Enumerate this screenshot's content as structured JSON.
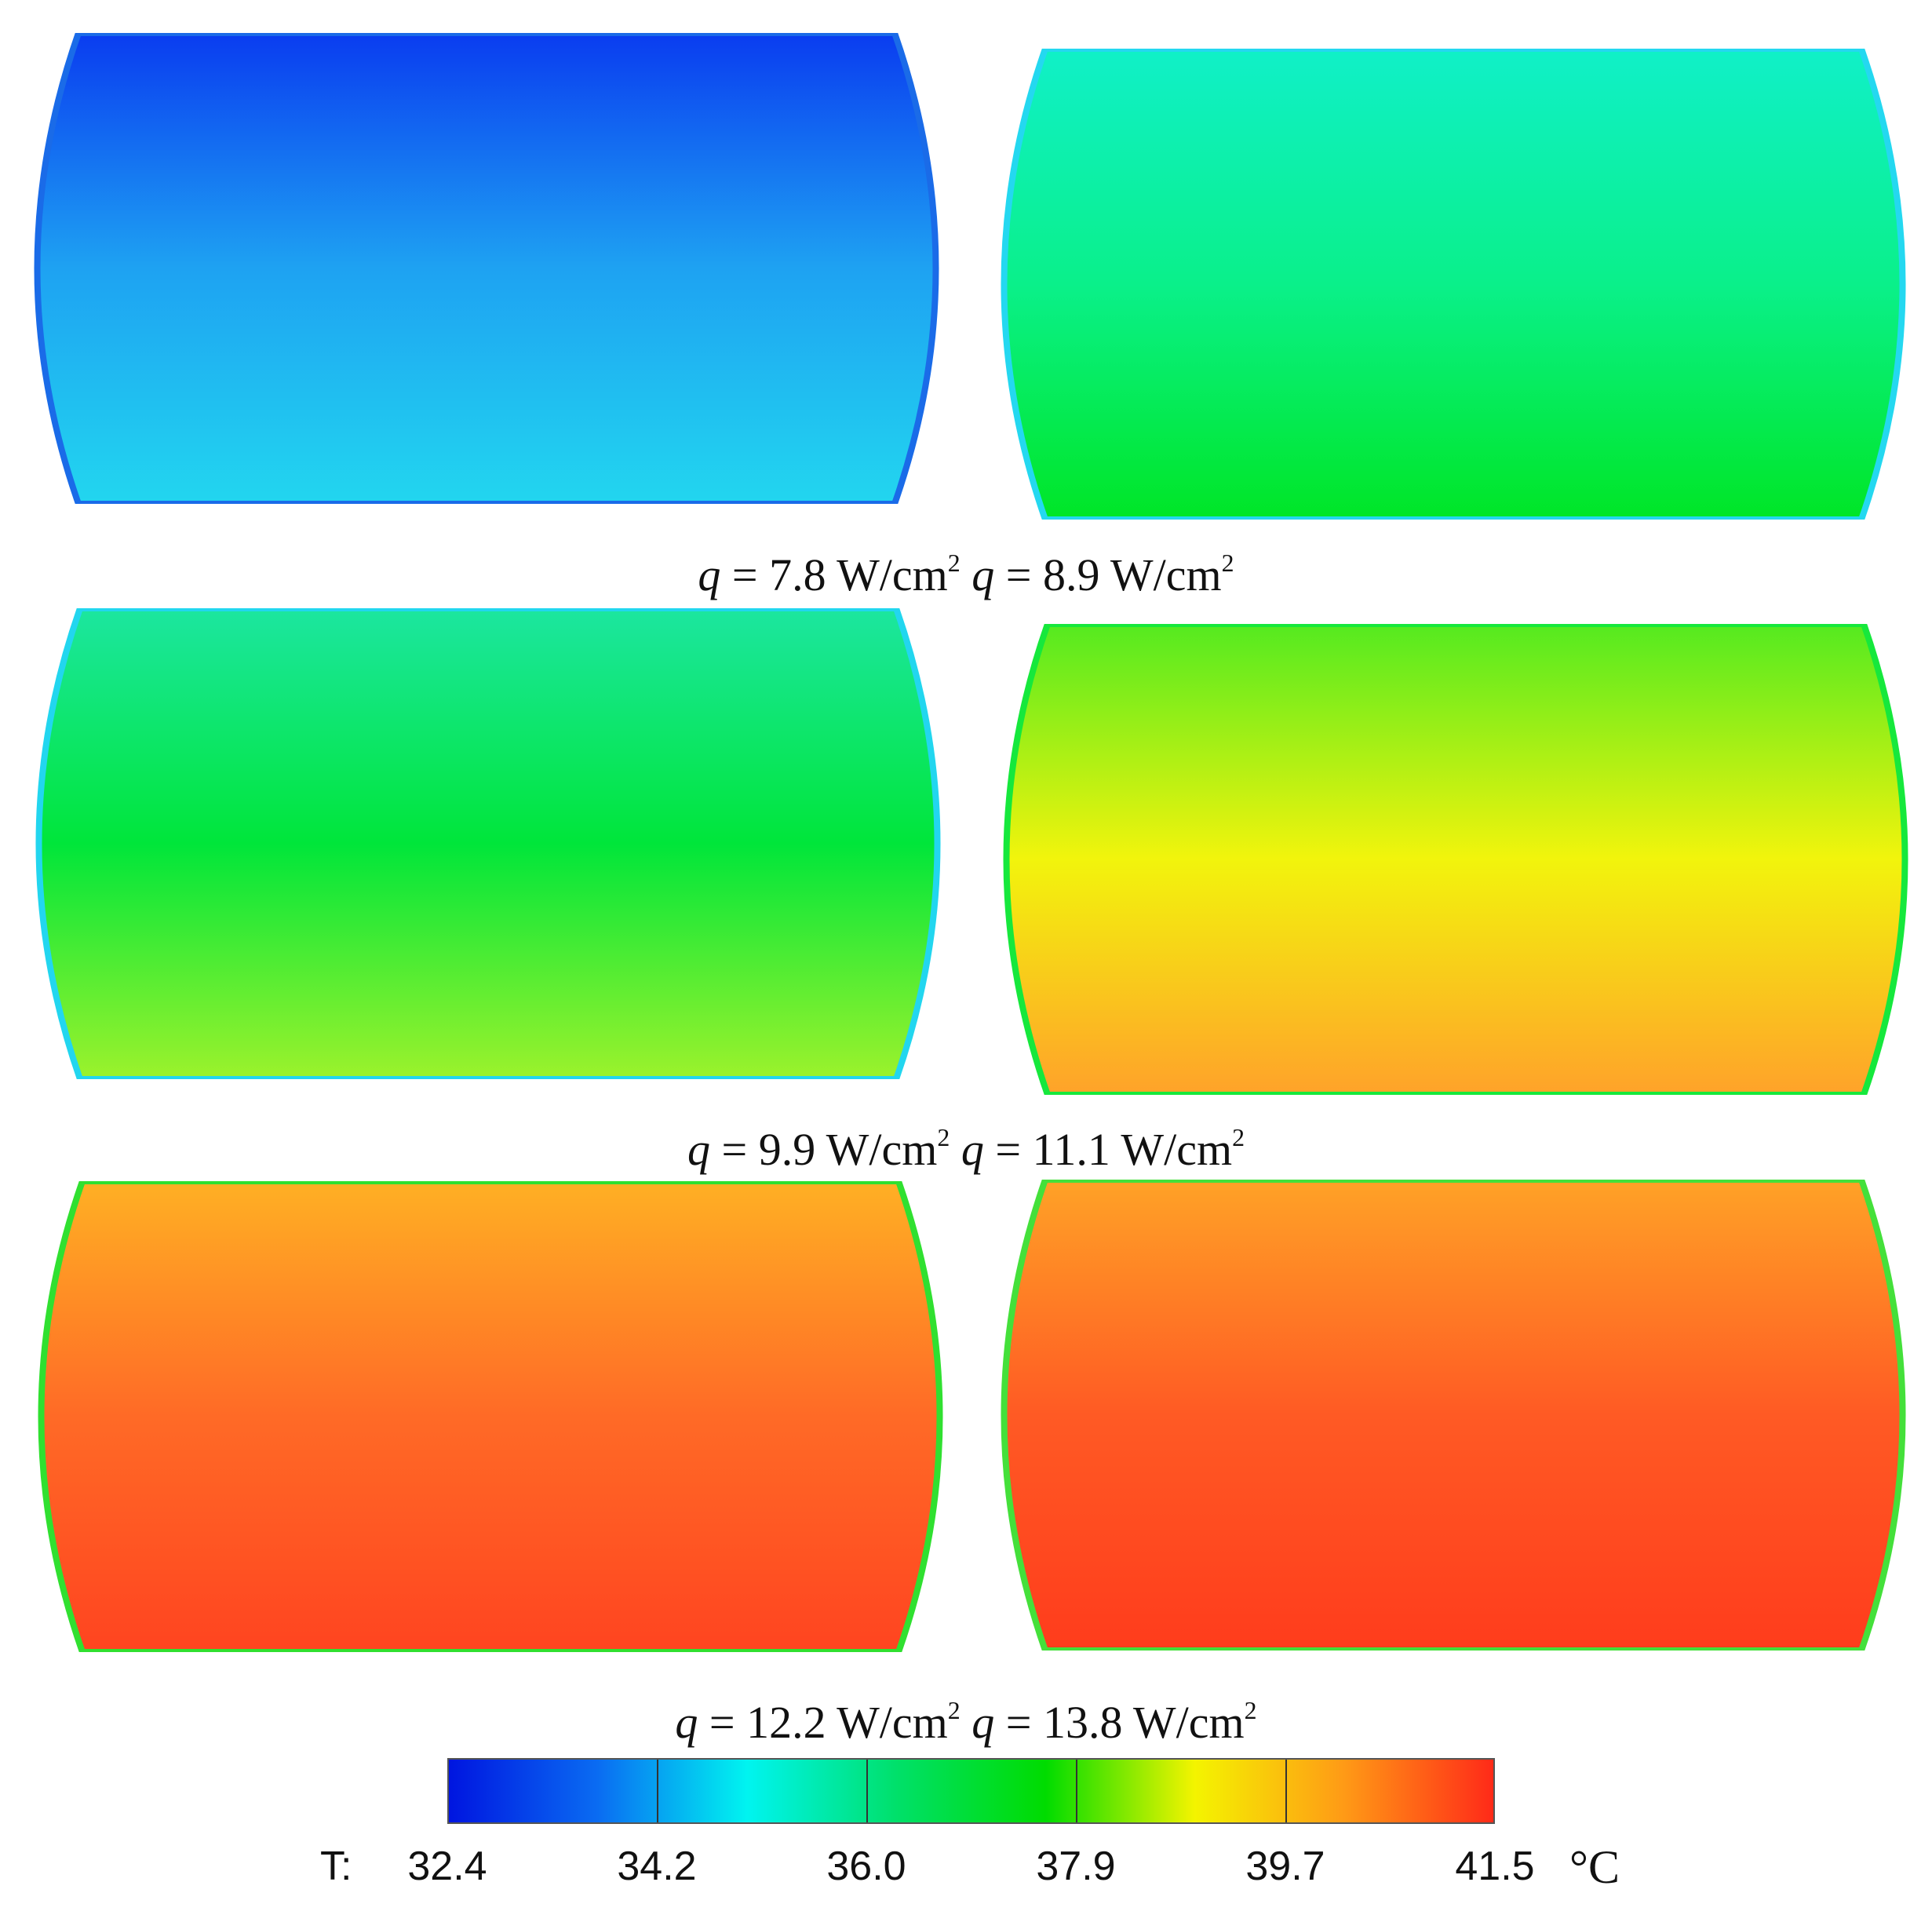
{
  "figure": {
    "panels": [
      {
        "caption": "q = 7.8 W/cm²",
        "q_symbol": "q",
        "q_value": "= 7.8 W/cm",
        "q_exp": "2",
        "colors": {
          "top": "#0a3cf0",
          "mid": "#1ea2f2",
          "bottom": "#22d6ef",
          "edge": "#1a6be8"
        }
      },
      {
        "caption": "q = 8.9 W/cm²",
        "q_symbol": "q",
        "q_value": "= 8.9 W/cm",
        "q_exp": "2",
        "colors": {
          "top": "#10f0c8",
          "mid": "#0af08a",
          "bottom": "#00e626",
          "edge": "#24d8f0"
        }
      },
      {
        "caption": "q = 9.9 W/cm²",
        "q_symbol": "q",
        "q_value": "= 9.9 W/cm",
        "q_exp": "2",
        "colors": {
          "top": "#1ce6a0",
          "mid": "#00e63a",
          "bottom": "#9cf22c",
          "edge": "#22d6ef"
        }
      },
      {
        "caption": "q = 11.1 W/cm²",
        "q_symbol": "q",
        "q_value": "= 11.1 W/cm",
        "q_exp": "2",
        "colors": {
          "top": "#54ea20",
          "mid": "#f2f40c",
          "bottom": "#ffa22a",
          "edge": "#16e83c"
        }
      },
      {
        "caption": "q = 12.2 W/cm²",
        "q_symbol": "q",
        "q_value": "= 12.2 W/cm",
        "q_exp": "2",
        "colors": {
          "top": "#ffb024",
          "mid": "#ff6a26",
          "bottom": "#ff4420",
          "edge": "#30e030"
        }
      },
      {
        "caption": "q = 13.8 W/cm²",
        "q_symbol": "q",
        "q_value": "= 13.8 W/cm",
        "q_exp": "2",
        "colors": {
          "top": "#ffa226",
          "mid": "#ff5a24",
          "bottom": "#ff3c1c",
          "edge": "#44e03a"
        }
      }
    ]
  },
  "colorbar": {
    "label": "T:",
    "unit_symbol": "°C",
    "min": 32.4,
    "max": 41.5,
    "ticks": [
      "32.4",
      "34.2",
      "36.0",
      "37.9",
      "39.7",
      "41.5"
    ],
    "stops": [
      "#0015e0",
      "#0a6cf2",
      "#00f4f0",
      "#00e06a",
      "#00dc00",
      "#f4f400",
      "#ff9a16",
      "#ff2a18"
    ]
  }
}
